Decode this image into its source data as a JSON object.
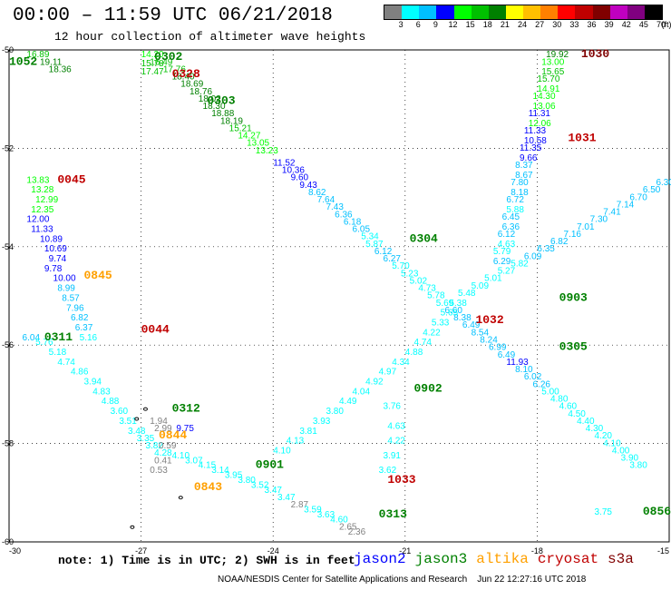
{
  "header": {
    "title": "00:00 – 11:59 UTC 06/21/2018",
    "subtitle": "12 hour collection of altimeter wave heights"
  },
  "scale": {
    "unit": "(ft)",
    "labels": [
      "3",
      "6",
      "9",
      "12",
      "15",
      "18",
      "21",
      "24",
      "27",
      "30",
      "33",
      "36",
      "39",
      "42",
      "45",
      "70"
    ],
    "colors": [
      "#808080",
      "#00ffff",
      "#00c0ff",
      "#0000ff",
      "#00ff00",
      "#00c000",
      "#008000",
      "#ffff00",
      "#ffc000",
      "#ff8000",
      "#ff0000",
      "#c00000",
      "#800000",
      "#c000c0",
      "#800080",
      "#000000"
    ]
  },
  "axes": {
    "lat_labels": [
      "-50",
      "-52",
      "-54",
      "-56",
      "-58",
      "-60"
    ],
    "lon_labels": [
      "-30",
      "-27",
      "-24",
      "-21",
      "-18",
      "-15"
    ]
  },
  "chart_data": {
    "type": "scatter",
    "title": "00:00 – 11:59 UTC 06/21/2018",
    "subtitle": "12 hour collection of altimeter wave heights",
    "xlim": [
      -30,
      -15
    ],
    "ylim": [
      -60,
      -50
    ],
    "tracks": [
      {
        "satellite": "jason3",
        "time_label": "1052",
        "time_at": [
          -30,
          -50.3
        ],
        "x": [
          -29.6,
          -29.3,
          -29.1
        ],
        "y": [
          -50.15,
          -50.3,
          -50.45
        ],
        "values": [
          16.89,
          19.11,
          18.36
        ]
      },
      {
        "satellite": "jason3",
        "time_label": "0302",
        "time_at": [
          -26.7,
          -50.2
        ],
        "x": [
          -27.0,
          -27.0,
          -27.0,
          -26.8,
          -26.5,
          -26.3,
          -26.1,
          -25.9,
          -25.7,
          -25.6,
          -25.4,
          -25.2,
          -25.0,
          -24.8,
          -24.6,
          -24.4
        ],
        "y": [
          -50.15,
          -50.33,
          -50.5,
          -50.3,
          -50.45,
          -50.6,
          -50.75,
          -50.9,
          -51.05,
          -51.2,
          -51.35,
          -51.5,
          -51.65,
          -51.8,
          -51.95,
          -52.1
        ],
        "values": [
          14.2,
          15.78,
          17.47,
          16.49,
          17.76,
          18.4,
          18.69,
          18.76,
          18.02,
          18.3,
          18.88,
          18.19,
          15.21,
          14.27,
          13.05,
          13.23
        ]
      },
      {
        "satellite": "cryosat",
        "time_label": "0328",
        "time_at": [
          -26.3,
          -50.55
        ],
        "x": [],
        "y": [],
        "values": []
      },
      {
        "satellite": "jason3",
        "time_label": "0303",
        "time_at": [
          -25.5,
          -51.1
        ],
        "x": [],
        "y": [],
        "values": []
      },
      {
        "satellite": "jason2",
        "time_label": "",
        "time_at": [
          -24.0,
          -52.5
        ],
        "x": [
          -24.0,
          -23.8,
          -23.6,
          -23.4,
          -23.2,
          -23.0,
          -22.8,
          -22.6,
          -22.4,
          -22.2,
          -22.0,
          -21.9,
          -21.7,
          -21.5,
          -21.3,
          -21.1,
          -20.9,
          -20.7,
          -20.5,
          -20.3,
          -20.1,
          -19.9,
          -19.7,
          -19.5,
          -19.3,
          -19.1,
          -18.9,
          -18.7,
          -18.5,
          -18.3,
          -18.1,
          -17.9,
          -17.7,
          -17.5,
          -17.3,
          -17.1,
          -16.9,
          -16.7,
          -16.5,
          -16.3,
          -16.1,
          -15.9
        ],
        "y": [
          -52.35,
          -52.5,
          -52.65,
          -52.8,
          -52.95,
          -53.1,
          -53.25,
          -53.4,
          -53.55,
          -53.7,
          -53.85,
          -54.0,
          -54.15,
          -54.3,
          -54.45,
          -54.6,
          -54.75,
          -54.9,
          -55.05,
          -55.2,
          -55.35,
          -55.5,
          -55.65,
          -55.8,
          -55.95,
          -56.1,
          -56.25,
          -56.4,
          -56.55,
          -56.7,
          -56.85,
          -57.0,
          -57.15,
          -57.3,
          -57.45,
          -57.6,
          -57.75,
          -57.9,
          -58.05,
          -58.2,
          -58.35,
          -58.5
        ],
        "values": [
          11.52,
          10.36,
          9.6,
          9.43,
          8.62,
          7.64,
          7.43,
          6.36,
          6.18,
          6.05,
          5.34,
          5.87,
          6.12,
          6.27,
          5.7,
          5.23,
          5.02,
          4.73,
          5.78,
          5.69,
          6.6,
          8.38,
          6.49,
          8.54,
          8.24,
          6.99,
          6.49,
          11.93,
          8.1,
          6.02,
          6.26,
          5.0,
          4.8,
          4.6,
          4.5,
          4.4,
          4.3,
          4.2,
          4.1,
          4.0,
          3.9,
          3.8
        ]
      },
      {
        "satellite": "jason3",
        "time_label": "0304",
        "time_at": [
          -20.9,
          -53.9
        ],
        "x": [],
        "y": [],
        "values": []
      },
      {
        "satellite": "s3a",
        "time_label": "1030",
        "time_at": [
          -17.0,
          -50.15
        ],
        "x": [
          -17.8,
          -17.9,
          -17.9,
          -18.0,
          -18.0,
          -18.1,
          -18.1,
          -18.2,
          -18.2,
          -18.3,
          -18.3,
          -18.4,
          -18.4,
          -18.5,
          -18.5,
          -18.6,
          -18.6,
          -18.7,
          -18.7,
          -18.8,
          -18.8,
          -18.9,
          -18.9,
          -19.0,
          -19.0
        ],
        "y": [
          -50.15,
          -50.3,
          -50.5,
          -50.65,
          -50.85,
          -51.0,
          -51.2,
          -51.35,
          -51.55,
          -51.7,
          -51.9,
          -52.05,
          -52.25,
          -52.4,
          -52.6,
          -52.75,
          -52.95,
          -53.1,
          -53.3,
          -53.45,
          -53.65,
          -53.8,
          -54.0,
          -54.15,
          -54.35
        ],
        "values": [
          19.92,
          13.0,
          15.65,
          15.7,
          14.91,
          14.3,
          13.06,
          11.31,
          12.06,
          11.33,
          10.58,
          11.35,
          9.66,
          8.37,
          8.67,
          7.8,
          8.18,
          6.72,
          5.88,
          6.45,
          6.36,
          6.12,
          4.63,
          5.79,
          6.29
        ]
      },
      {
        "satellite": "cryosat",
        "time_label": "1031",
        "time_at": [
          -17.3,
          -51.85
        ],
        "x": [],
        "y": [],
        "values": []
      },
      {
        "satellite": "cryosat",
        "time_label": "0045",
        "time_at": [
          -28.9,
          -52.7
        ],
        "x": [
          -29.6,
          -29.5,
          -29.4,
          -29.5,
          -29.6,
          -29.5,
          -29.3,
          -29.2,
          -29.1,
          -29.2,
          -29.0,
          -28.9,
          -28.8,
          -28.7,
          -28.6,
          -28.5,
          -28.4
        ],
        "y": [
          -52.7,
          -52.9,
          -53.1,
          -53.3,
          -53.5,
          -53.7,
          -53.9,
          -54.1,
          -54.3,
          -54.5,
          -54.7,
          -54.9,
          -55.1,
          -55.3,
          -55.5,
          -55.7,
          -55.9
        ],
        "values": [
          13.83,
          13.28,
          12.99,
          12.35,
          12.0,
          11.33,
          10.89,
          10.69,
          9.74,
          9.78,
          10.0,
          8.99,
          8.57,
          7.96,
          6.82,
          6.37,
          5.16
        ]
      },
      {
        "satellite": "altika",
        "time_label": "0845",
        "time_at": [
          -28.3,
          -54.65
        ],
        "x": [],
        "y": [],
        "values": []
      },
      {
        "satellite": "cryosat",
        "time_label": "0044",
        "time_at": [
          -27.0,
          -55.75
        ],
        "x": [],
        "y": [],
        "values": []
      },
      {
        "satellite": "jason3",
        "time_label": "0311",
        "time_at": [
          -29.2,
          -55.9
        ],
        "x": [
          -29.7,
          -29.4,
          -29.1,
          -28.9,
          -28.6,
          -28.3,
          -28.1,
          -27.9,
          -27.7,
          -27.5,
          -27.3,
          -27.1,
          -26.9,
          -26.7,
          -26.3,
          -26.0,
          -25.7,
          -25.4,
          -25.1,
          -24.8,
          -24.5,
          -24.2,
          -23.9,
          -23.6,
          -23.3,
          -23.0,
          -22.7,
          -22.5,
          -22.3
        ],
        "y": [
          -55.9,
          -56.0,
          -56.2,
          -56.4,
          -56.6,
          -56.8,
          -57.0,
          -57.2,
          -57.4,
          -57.6,
          -57.8,
          -57.95,
          -58.1,
          -58.25,
          -58.3,
          -58.4,
          -58.5,
          -58.6,
          -58.7,
          -58.8,
          -58.9,
          -59.0,
          -59.15,
          -59.3,
          -59.4,
          -59.5,
          -59.6,
          -59.75,
          -59.85
        ],
        "values": [
          6.04,
          5.76,
          5.18,
          4.74,
          4.86,
          3.94,
          4.83,
          4.88,
          3.6,
          3.51,
          3.48,
          3.35,
          3.82,
          4.28,
          4.1,
          3.07,
          4.15,
          3.14,
          3.95,
          3.8,
          3.52,
          3.47,
          3.47,
          2.87,
          3.59,
          3.63,
          4.6,
          2.65,
          2.36
        ]
      },
      {
        "satellite": "jason3",
        "time_label": "0312",
        "time_at": [
          -26.3,
          -57.35
        ],
        "x": [],
        "y": [],
        "values": []
      },
      {
        "satellite": "jason2",
        "time_label": "",
        "time_at": [
          -26.0,
          -57.8
        ],
        "x": [
          -26.2
        ],
        "y": [
          -57.75
        ],
        "values": [
          9.75
        ]
      },
      {
        "satellite": "altika",
        "time_label": "0844",
        "time_at": [
          -26.6,
          -57.9
        ],
        "x": [],
        "y": [],
        "values": []
      },
      {
        "satellite": "altika",
        "time_label": "0843",
        "time_at": [
          -25.8,
          -58.95
        ],
        "x": [],
        "y": [],
        "values": []
      },
      {
        "satellite": "jason3",
        "time_label": "0901",
        "time_at": [
          -24.4,
          -58.5
        ],
        "x": [],
        "y": [],
        "values": []
      },
      {
        "satellite": "jason3",
        "time_label": "0902",
        "time_at": [
          -20.8,
          -56.95
        ],
        "x": [],
        "y": [],
        "values": []
      },
      {
        "satellite": "jason2",
        "time_label": "",
        "time_at": [
          -24.0,
          -58.2
        ],
        "x": [
          -24.0,
          -23.7,
          -23.4,
          -23.1,
          -22.8,
          -22.5,
          -22.2,
          -21.9,
          -21.6,
          -21.3,
          -21.0,
          -20.8,
          -20.6,
          -20.4,
          -20.2,
          -20.0,
          -19.8,
          -19.5,
          -19.2,
          -18.9,
          -18.6,
          -18.3,
          -18.0,
          -17.7,
          -17.4,
          -17.1,
          -16.8,
          -16.5,
          -16.2,
          -15.9,
          -15.6,
          -15.3
        ],
        "y": [
          -58.2,
          -58.0,
          -57.8,
          -57.6,
          -57.4,
          -57.2,
          -57.0,
          -56.8,
          -56.6,
          -56.4,
          -56.2,
          -56.0,
          -55.8,
          -55.6,
          -55.4,
          -55.2,
          -55.0,
          -54.85,
          -54.7,
          -54.55,
          -54.4,
          -54.25,
          -54.1,
          -53.95,
          -53.8,
          -53.65,
          -53.5,
          -53.35,
          -53.2,
          -53.05,
          -52.9,
          -52.75
        ],
        "values": [
          4.1,
          4.13,
          3.81,
          3.93,
          3.8,
          4.49,
          4.04,
          4.92,
          4.97,
          4.34,
          4.88,
          4.74,
          4.22,
          5.33,
          5.65,
          5.38,
          5.48,
          5.09,
          5.01,
          5.27,
          5.82,
          6.09,
          6.35,
          6.82,
          7.16,
          7.01,
          7.3,
          7.41,
          7.14,
          6.7,
          6.5,
          6.3
        ]
      },
      {
        "satellite": "cryosat",
        "time_label": "1032",
        "time_at": [
          -19.4,
          -55.55
        ],
        "x": [],
        "y": [],
        "values": []
      },
      {
        "satellite": "jason3",
        "time_label": "0903",
        "time_at": [
          -17.5,
          -55.1
        ],
        "x": [],
        "y": [],
        "values": []
      },
      {
        "satellite": "jason3",
        "time_label": "0305",
        "time_at": [
          -17.5,
          -56.1
        ],
        "x": [],
        "y": [],
        "values": []
      },
      {
        "satellite": "cryosat",
        "time_label": "1033",
        "time_at": [
          -21.4,
          -58.8
        ],
        "x": [],
        "y": [],
        "values": []
      },
      {
        "satellite": "jason3",
        "time_label": "0313",
        "time_at": [
          -21.6,
          -59.5
        ],
        "x": [],
        "y": [],
        "values": []
      },
      {
        "satellite": "jason3",
        "time_label": "0856",
        "time_at": [
          -15.6,
          -59.45
        ],
        "x": [
          -16.7
        ],
        "y": [
          -59.45
        ],
        "values": [
          3.75
        ]
      },
      {
        "satellite": "altika",
        "time_label": "",
        "time_at": [
          -21.6,
          -57.0
        ],
        "x": [
          -21.5,
          -21.4,
          -21.4,
          -21.5,
          -21.6
        ],
        "y": [
          -57.3,
          -57.7,
          -58.0,
          -58.3,
          -58.6
        ],
        "values": [
          3.76,
          4.63,
          4.22,
          3.91,
          3.62
        ]
      },
      {
        "satellite": "altika",
        "time_label": "",
        "time_at": [
          -26.5,
          -57.7
        ],
        "x": [
          -26.8,
          -26.7,
          -26.6,
          -26.7,
          -26.8
        ],
        "y": [
          -57.6,
          -57.75,
          -58.1,
          -58.4,
          -58.6
        ],
        "values": [
          1.94,
          2.99,
          0.59,
          0.41,
          0.53
        ]
      }
    ]
  },
  "footer": {
    "note": "note: 1) Time is in UTC; 2) SWH is in feet",
    "legend": [
      {
        "label": "jason2",
        "color": "#0000ff"
      },
      {
        "label": "jason3",
        "color": "#008000"
      },
      {
        "label": "altika",
        "color": "#ffa000"
      },
      {
        "label": "cryosat",
        "color": "#c00000"
      },
      {
        "label": "s3a",
        "color": "#800000"
      }
    ],
    "credit": "NOAA/NESDIS Center for Satellite Applications and Research    Jun 22 12:27:16 UTC 2018"
  }
}
